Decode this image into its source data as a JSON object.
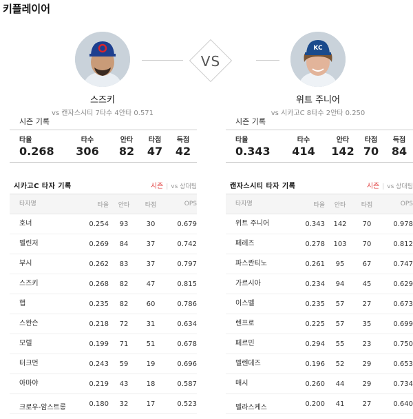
{
  "page": {
    "title": "키플레이어"
  },
  "vs_label": "VS",
  "players": [
    {
      "name": "스즈키",
      "summary": "vs 캔자스시티  7타수 4안타 0.571",
      "cap_color": "#1d3f8f",
      "cap_letter": "C"
    },
    {
      "name": "위트 주니어",
      "summary": "vs 시카고C  8타수 2안타 0.250",
      "cap_color": "#1a4a8c",
      "cap_letter": "KC"
    }
  ],
  "season": {
    "label": "시즌 기록",
    "headers": [
      "타율",
      "타수",
      "안타",
      "타점",
      "득점"
    ],
    "left": [
      "0.268",
      "306",
      "82",
      "47",
      "42"
    ],
    "right": [
      "0.343",
      "414",
      "142",
      "70",
      "84"
    ]
  },
  "tables": [
    {
      "title": "시카고C 타자 기록",
      "tab_active": "시즌",
      "tab_inactive": "vs 상대팀",
      "columns": [
        "타자명",
        "타율",
        "안타",
        "타점",
        "OPS"
      ],
      "rows": [
        [
          "호너",
          "0.254",
          "93",
          "30",
          "0.679"
        ],
        [
          "벨린저",
          "0.269",
          "84",
          "37",
          "0.742"
        ],
        [
          "부시",
          "0.262",
          "83",
          "37",
          "0.797"
        ],
        [
          "스즈키",
          "0.268",
          "82",
          "47",
          "0.815"
        ],
        [
          "햅",
          "0.235",
          "82",
          "60",
          "0.786"
        ],
        [
          "스완슨",
          "0.218",
          "72",
          "31",
          "0.634"
        ],
        [
          "모렐",
          "0.199",
          "71",
          "51",
          "0.678"
        ],
        [
          "터크먼",
          "0.243",
          "59",
          "19",
          "0.696"
        ],
        [
          "아마야",
          "0.219",
          "43",
          "18",
          "0.587"
        ],
        [
          "크로우-암스트롱",
          "0.180",
          "32",
          "17",
          "0.523"
        ]
      ]
    },
    {
      "title": "캔자스시티 타자 기록",
      "tab_active": "시즌",
      "tab_inactive": "vs 상대팀",
      "columns": [
        "타자명",
        "타율",
        "안타",
        "타점",
        "OPS"
      ],
      "rows": [
        [
          "위트 주니어",
          "0.343",
          "142",
          "70",
          "0.978"
        ],
        [
          "페레즈",
          "0.278",
          "103",
          "70",
          "0.812"
        ],
        [
          "파스콴티노",
          "0.261",
          "95",
          "67",
          "0.747"
        ],
        [
          "가르시아",
          "0.234",
          "94",
          "45",
          "0.629"
        ],
        [
          "이스벨",
          "0.235",
          "57",
          "27",
          "0.673"
        ],
        [
          "렌프로",
          "0.225",
          "57",
          "35",
          "0.699"
        ],
        [
          "페르민",
          "0.294",
          "55",
          "23",
          "0.750"
        ],
        [
          "멜렌데즈",
          "0.196",
          "52",
          "29",
          "0.653"
        ],
        [
          "매시",
          "0.260",
          "44",
          "29",
          "0.734"
        ],
        [
          "벨라스케스",
          "0.200",
          "41",
          "27",
          "0.640"
        ]
      ]
    }
  ]
}
